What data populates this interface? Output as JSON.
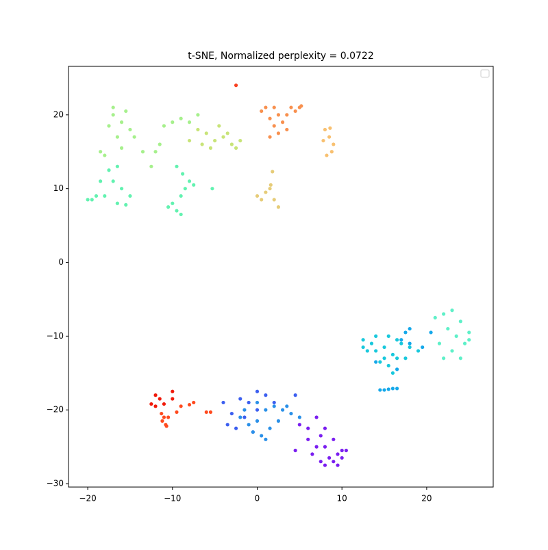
{
  "chart_data": {
    "type": "scatter",
    "title": "t-SNE, Normalized perplexity = 0.0722",
    "xlim": [
      -22.27,
      27.85
    ],
    "ylim": [
      -30.46,
      26.57
    ],
    "xticks": [
      {
        "value": -20,
        "label": "−20"
      },
      {
        "value": -10,
        "label": "−10"
      },
      0,
      10,
      20
    ],
    "yticks": [
      {
        "value": -30,
        "label": "−30"
      },
      {
        "value": -20,
        "label": "−20"
      },
      {
        "value": -10,
        "label": "−10"
      },
      0,
      10,
      20
    ],
    "grid": false,
    "series": [
      {
        "color": "#7a1ef0",
        "x": [
          5,
          6,
          7,
          7.5,
          8,
          8.5,
          9,
          9.5,
          10,
          10.5,
          6.5,
          7,
          8,
          9,
          4.5,
          6,
          8,
          10,
          7.5,
          9.5
        ],
        "values": [
          -22,
          -24,
          -21,
          -23.5,
          -25,
          -26.5,
          -27,
          -26,
          -25.5,
          -25.5,
          -26,
          -25,
          -27.5,
          -24,
          -25.5,
          -22.5,
          -22.5,
          -26.5,
          -27,
          -27.5
        ]
      },
      {
        "color": "#3c5ff0",
        "x": [
          -4,
          -3,
          -2,
          -1,
          0,
          -1.5,
          1,
          -3.5,
          -2.5,
          0,
          4.5,
          -0.5,
          2
        ],
        "values": [
          -19,
          -20.5,
          -18.5,
          -19,
          -17.5,
          -21,
          -18,
          -22,
          -22.5,
          -20,
          -18,
          -23,
          -19
        ]
      },
      {
        "color": "#2a90e8",
        "x": [
          -2,
          -1,
          0,
          1,
          2,
          3,
          4,
          5,
          1.5,
          0.5,
          -0.5,
          2.5,
          3.5,
          -1.5,
          1,
          0
        ],
        "values": [
          -21,
          -22,
          -21.5,
          -20,
          -19.5,
          -20,
          -20.5,
          -21,
          -22.5,
          -23.5,
          -23,
          -21.5,
          -19.5,
          -20,
          -24,
          -19
        ]
      },
      {
        "color": "#f01a0a",
        "x": [
          -12,
          -11.5,
          -12,
          -10,
          -10,
          -11,
          -12.5
        ],
        "values": [
          -18,
          -18.5,
          -19.5,
          -17.5,
          -18.5,
          -19.2,
          -19.2
        ]
      },
      {
        "color": "#ff4a1e",
        "x": [
          -11,
          -10.8,
          -11.2,
          -10.5,
          -9,
          -9.5,
          -8,
          -7.5,
          -6,
          -5.5,
          -11.3,
          -10.7
        ],
        "values": [
          -21,
          -22,
          -21.5,
          -21,
          -19.5,
          -20.3,
          -19.3,
          -19,
          -20.3,
          -20.3,
          -20.5,
          -22.2
        ]
      },
      {
        "color": "#18c8dc",
        "x": [
          12.5,
          13.5,
          14,
          15,
          15.5,
          16,
          16.5,
          17,
          14.5,
          13,
          15.5,
          16,
          17.5,
          18,
          19,
          14,
          15,
          16.5,
          12.5
        ],
        "values": [
          -10.5,
          -11,
          -12,
          -11.5,
          -10,
          -12.5,
          -13,
          -11,
          -13.5,
          -12,
          -14,
          -15,
          -13,
          -11.5,
          -12,
          -10,
          -13,
          -10.5,
          -11.5
        ]
      },
      {
        "color": "#14a8ea",
        "x": [
          17.5,
          18,
          17,
          18,
          19.5,
          20.5,
          14.5,
          15.5,
          16.5,
          15,
          16,
          14,
          16.5
        ],
        "values": [
          -9.5,
          -9,
          -10.5,
          -11,
          -11.5,
          -9.5,
          -17.3,
          -17.2,
          -17.1,
          -17.3,
          -17.1,
          -13.5,
          -14.5
        ]
      },
      {
        "color": "#5ef0c8",
        "x": [
          21,
          22,
          23,
          24,
          25,
          22.5,
          23.5,
          24.5,
          23,
          24,
          25,
          22,
          21.5
        ],
        "values": [
          -7.5,
          -7,
          -6.5,
          -8,
          -9.5,
          -9,
          -10,
          -11,
          -12,
          -13,
          -10.5,
          -13,
          -11
        ]
      },
      {
        "color": "#62f2b0",
        "x": [
          -10,
          -9,
          -8.5,
          -8,
          -7.5,
          -9.5,
          -10.5,
          -8.8,
          -9,
          -17,
          -16,
          -15,
          -16.5,
          -17.5,
          -18,
          -19.5,
          -19,
          -20,
          -18.5,
          -16.5,
          -15.5,
          -9.5,
          -5.3
        ],
        "values": [
          8,
          9,
          10,
          11,
          10.5,
          7,
          7.5,
          12,
          6.5,
          11,
          10,
          9,
          8,
          12.5,
          9,
          8.5,
          9,
          8.5,
          11,
          13,
          7.8,
          13,
          10
        ]
      },
      {
        "color": "#a6f08c",
        "x": [
          -17,
          -16,
          -15,
          -16.5,
          -17.5,
          -15.5,
          -16,
          -14.5,
          -18,
          -12,
          -12.5,
          -11.5,
          -10,
          -9,
          -8,
          -7,
          -11,
          -13.5,
          -17,
          -18.5
        ],
        "values": [
          20,
          19,
          18,
          17,
          18.5,
          20.5,
          15.5,
          17,
          14.5,
          15,
          13,
          16,
          19,
          19.5,
          19,
          20,
          18.5,
          15,
          21,
          15
        ]
      },
      {
        "color": "#c8e478",
        "x": [
          -7,
          -6,
          -5,
          -4,
          -3,
          -5.5,
          -4.5,
          -3.5,
          -6.5,
          -2.5,
          -8,
          -2
        ],
        "values": [
          18,
          17.5,
          16.5,
          17,
          16,
          15.5,
          18.5,
          17.5,
          16,
          15.5,
          16.5,
          16.5
        ]
      },
      {
        "color": "#f8904e",
        "x": [
          0.5,
          1.5,
          2,
          2.5,
          3,
          1,
          2,
          3.5,
          1.5,
          2.5,
          4,
          5,
          4.5,
          3.5,
          5.2
        ],
        "values": [
          20.5,
          19.5,
          18.5,
          17.5,
          19,
          21,
          21,
          18,
          17,
          20,
          21,
          21,
          20.5,
          20,
          21.2
        ]
      },
      {
        "color": "#f8c070",
        "x": [
          8,
          8.5,
          9,
          8.8,
          8.2,
          7.8,
          8.6
        ],
        "values": [
          18,
          17,
          16,
          15,
          14.5,
          16.5,
          18.2
        ]
      },
      {
        "color": "#e6cc78",
        "x": [
          0,
          1,
          1.5,
          2,
          2.5,
          1.8,
          0.5,
          1.6
        ],
        "values": [
          9,
          9.5,
          10,
          8.5,
          7.5,
          12.3,
          8.5,
          10.5
        ]
      },
      {
        "color": "#f84020",
        "x": [
          -2.5
        ],
        "values": [
          24
        ]
      }
    ]
  }
}
